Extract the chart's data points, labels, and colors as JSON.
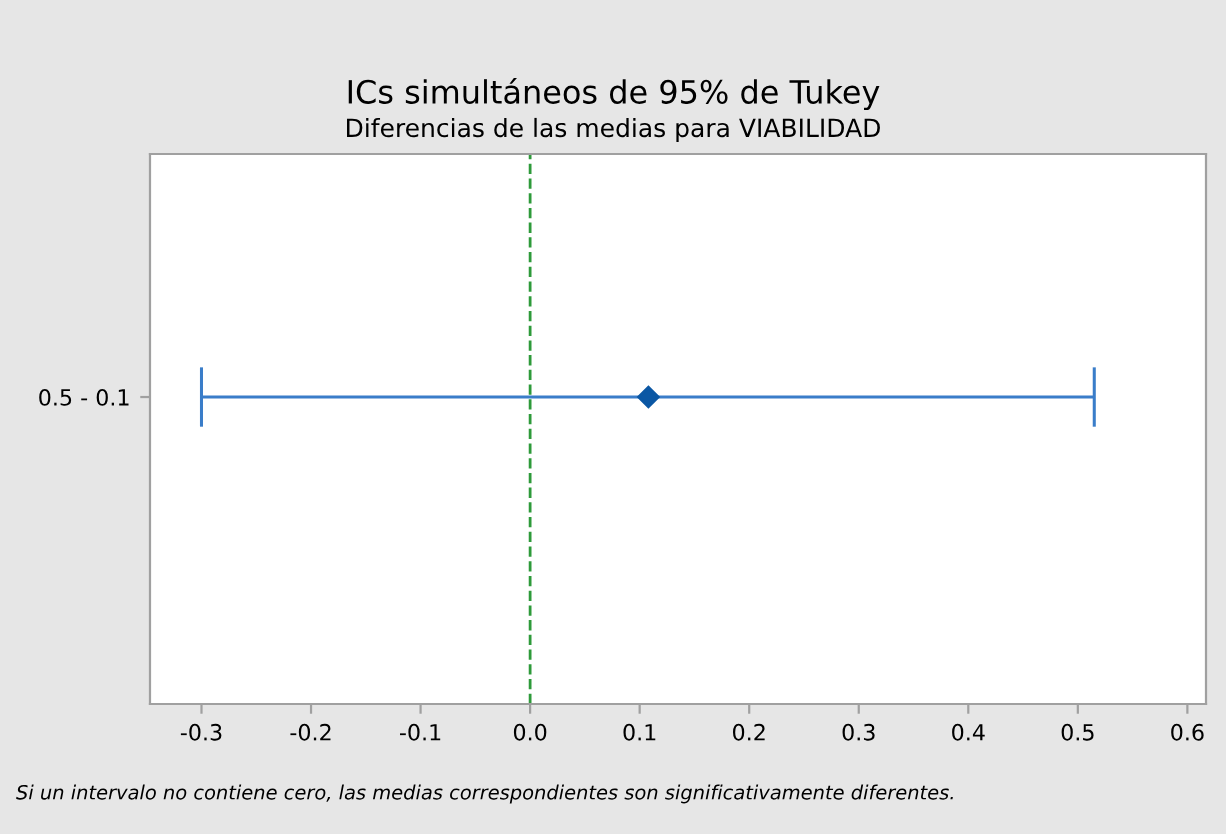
{
  "chart_data": {
    "type": "scatter",
    "orientation": "horizontal",
    "title": "ICs simultáneos de 95% de Tukey",
    "subtitle": "Diferencias de las medias para VIABILIDAD",
    "categories": [
      "0.5 - 0.1"
    ],
    "series": [
      {
        "color": "#0b57a4",
        "values": [
          0.108
        ],
        "errors": [
          [
            -0.3,
            0.515
          ]
        ]
      }
    ],
    "marker": "diamond",
    "grid": false,
    "legend": false,
    "xlim": [
      -0.347,
      0.617
    ],
    "xticks": [
      -0.3,
      -0.2,
      -0.1,
      {
        "value": 0,
        "label": "0.0"
      },
      0.1,
      0.2,
      0.3,
      0.4,
      0.5,
      0.6
    ],
    "ref_lines": [
      {
        "axis": "x",
        "value": 0,
        "color": "#2e9a3a",
        "line_style": "dashed"
      }
    ],
    "annotations": [
      "Si un intervalo no contiene cero, las medias correspondientes son significativamente diferentes."
    ]
  }
}
